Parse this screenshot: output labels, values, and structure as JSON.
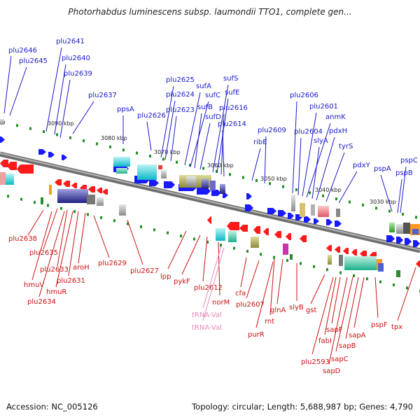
{
  "title": "Photorhabdus luminescens subsp. laumondii TTO1, complete gen...",
  "footer": {
    "accession": "Accession: NC_005126",
    "summary": "Topology: circular; Length: 5,688,987 bp; Genes: 4,790"
  },
  "colors": {
    "upper_label": "#1a1acc",
    "lower_label": "#cc1111",
    "trna_label": "#e68ab8",
    "forward_arrow": "#1a1aff",
    "reverse_arrow": "#ff1a1a",
    "backbone": "#888888",
    "tick": "#1f8f1f"
  },
  "ticks": [
    {
      "label": "3090 kbp"
    },
    {
      "label": "3080 kbp"
    },
    {
      "label": "3070 kbp"
    },
    {
      "label": "3060 kbp"
    },
    {
      "label": "3050 kbp"
    },
    {
      "label": "3040 kbp"
    },
    {
      "label": "3030 kbp"
    }
  ],
  "upper_genes": [
    {
      "name": "plu2646"
    },
    {
      "name": "plu2645"
    },
    {
      "name": "plu2641"
    },
    {
      "name": "plu2640"
    },
    {
      "name": "plu2639"
    },
    {
      "name": "plu2637"
    },
    {
      "name": "ppsA"
    },
    {
      "name": "plu2626"
    },
    {
      "name": "plu2625"
    },
    {
      "name": "plu2624"
    },
    {
      "name": "plu2623"
    },
    {
      "name": "sufA"
    },
    {
      "name": "sufC"
    },
    {
      "name": "sufB"
    },
    {
      "name": "sufD"
    },
    {
      "name": "sufS"
    },
    {
      "name": "sufE"
    },
    {
      "name": "plu2616"
    },
    {
      "name": "plu2614"
    },
    {
      "name": "ribE"
    },
    {
      "name": "plu2609"
    },
    {
      "name": "plu2606"
    },
    {
      "name": "plu2604"
    },
    {
      "name": "plu2601"
    },
    {
      "name": "anmK"
    },
    {
      "name": "slyA"
    },
    {
      "name": "pdxH"
    },
    {
      "name": "tyrS"
    },
    {
      "name": "pdxY"
    },
    {
      "name": "pspA"
    },
    {
      "name": "pspC"
    },
    {
      "name": "pspB"
    }
  ],
  "lower_genes": [
    {
      "name": "plu2638"
    },
    {
      "name": "plu2635"
    },
    {
      "name": "plu2633"
    },
    {
      "name": "aroH"
    },
    {
      "name": "hmuV"
    },
    {
      "name": "plu2631"
    },
    {
      "name": "hmuR"
    },
    {
      "name": "plu2634"
    },
    {
      "name": "plu2629"
    },
    {
      "name": "plu2627"
    },
    {
      "name": "lpp"
    },
    {
      "name": "pykF"
    },
    {
      "name": "plu2612"
    },
    {
      "name": "norM"
    },
    {
      "name": "cfa"
    },
    {
      "name": "plu2607"
    },
    {
      "name": "rnt"
    },
    {
      "name": "glnA"
    },
    {
      "name": "slyB"
    },
    {
      "name": "gst"
    },
    {
      "name": "purR"
    },
    {
      "name": "sapF"
    },
    {
      "name": "fabI"
    },
    {
      "name": "sapA"
    },
    {
      "name": "sapB"
    },
    {
      "name": "pspF"
    },
    {
      "name": "tpx"
    },
    {
      "name": "plu2593"
    },
    {
      "name": "sapC"
    },
    {
      "name": "sapD"
    }
  ],
  "trna_genes": [
    {
      "name": "tRNA-Val"
    },
    {
      "name": "tRNA-Val"
    }
  ]
}
